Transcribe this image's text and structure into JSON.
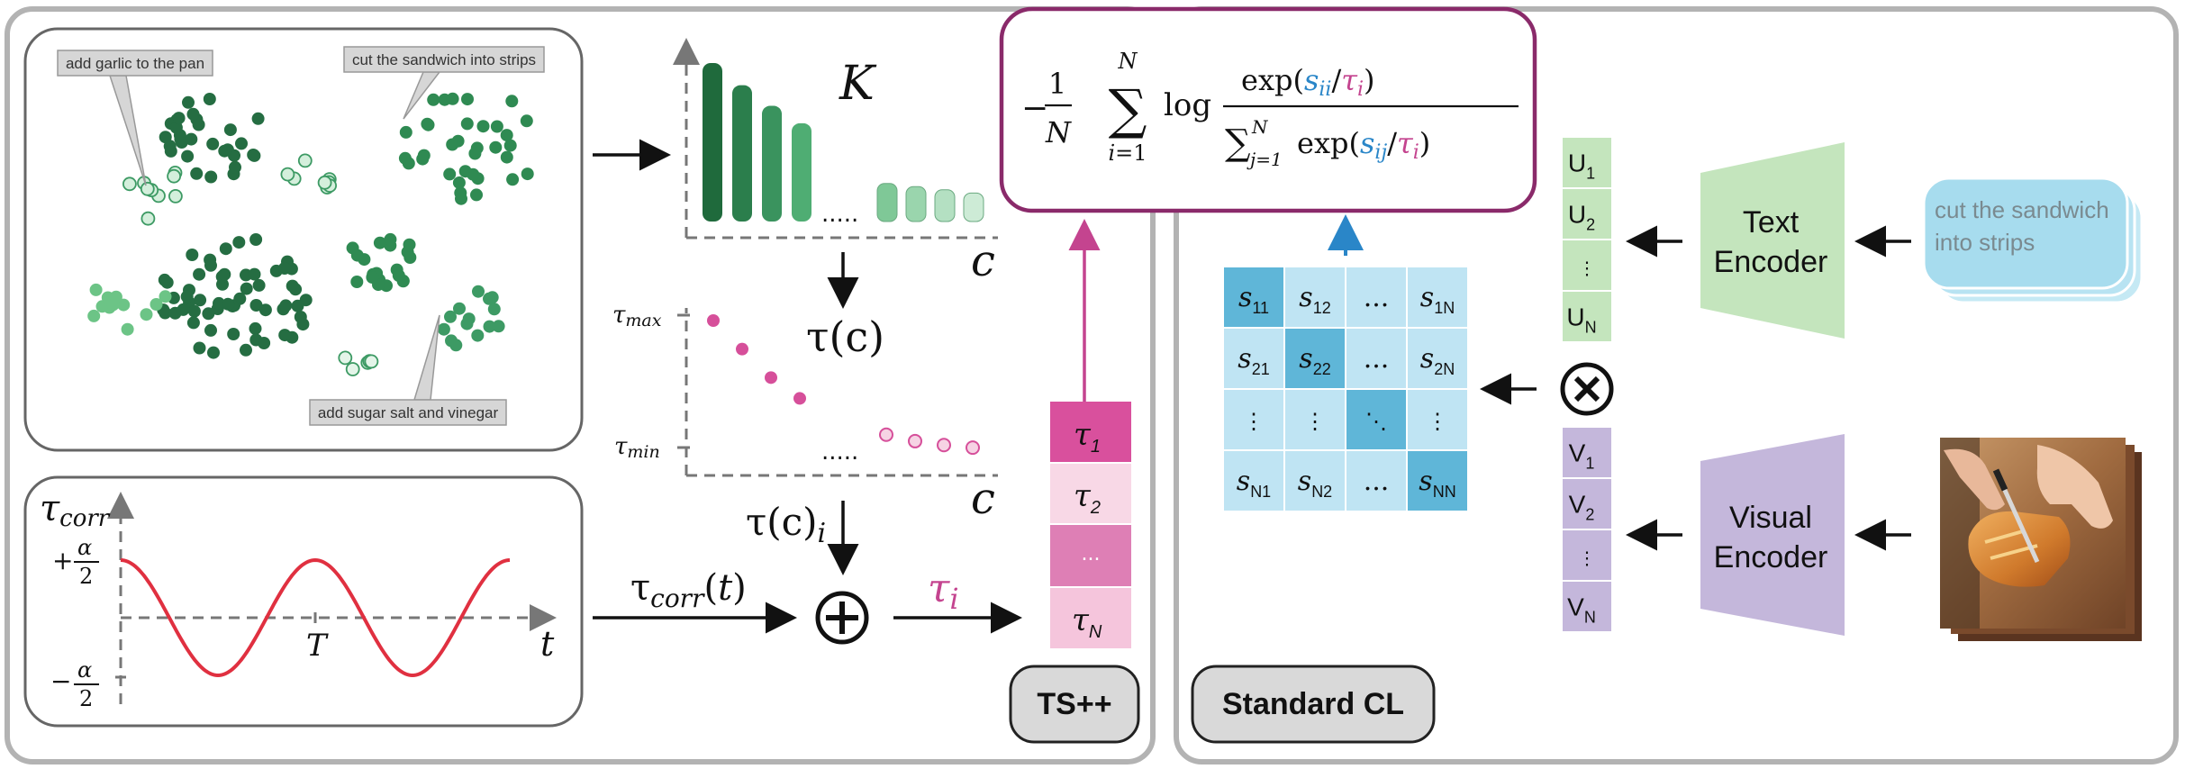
{
  "clusters": {
    "callouts": [
      "add garlic to the pan",
      "cut the sandwich into strips",
      "add sugar salt and vinegar"
    ]
  },
  "histogram": {
    "k_label": "K",
    "ellipsis": ".....",
    "x_axis": "c",
    "dark_bar_values": [
      1.0,
      0.86,
      0.73,
      0.62
    ],
    "light_bar_values": [
      0.24,
      0.22,
      0.2,
      0.18
    ]
  },
  "temperature": {
    "arrow_label": "τ(c)",
    "tau_max": "τmax",
    "tau_min": "τmin",
    "ellipsis": ".....",
    "x_axis": "c",
    "high_points": [
      1.0,
      0.78,
      0.56,
      0.4
    ],
    "low_points": [
      0.12,
      0.07,
      0.04,
      0.02
    ],
    "out_label": "τ(c)i"
  },
  "cosine": {
    "y_axis": "τcorr",
    "plus_tick": "+α/2",
    "minus_tick": "−α/2",
    "period_tick": "T",
    "x_axis": "t",
    "arrow_label": "τcorr(t)"
  },
  "combine": {
    "tau_i_label": "τi",
    "tau_stack": [
      "τ1",
      "τ2",
      "...",
      "τN"
    ]
  },
  "formula": {
    "text": "−(1/N) Σ_{i=1}^{N} log exp(sii/τi) / Σ_{j=1}^{N} exp(sij/τi)",
    "neg_one": "−",
    "one": "1",
    "N": "N",
    "sum_top": "N",
    "sum_bottom": "i=1",
    "log": "log",
    "num_exp": "exp(",
    "num_s": "sii",
    "num_tau": "τi",
    "den_sum_top": "N",
    "den_sum_bottom": "j=1",
    "den_exp": "exp(",
    "den_s": "sij",
    "den_tau": "τi"
  },
  "labels": {
    "ts_plus_plus": "TS++",
    "standard_cl": "Standard CL"
  },
  "similarity_matrix": {
    "rows": [
      [
        "S11",
        "S12",
        "...",
        "S1N"
      ],
      [
        "S21",
        "S22",
        "...",
        "S2N"
      ],
      [
        "⋮",
        "⋮",
        "⋱",
        "⋮"
      ],
      [
        "SN1",
        "SN2",
        "...",
        "SNN"
      ]
    ]
  },
  "text_embeddings": [
    "U1",
    "U2",
    "⋮",
    "UN"
  ],
  "visual_embeddings": [
    "V1",
    "V2",
    "⋮",
    "VN"
  ],
  "encoders": {
    "text": [
      "Text",
      "Encoder"
    ],
    "visual": [
      "Visual",
      "Encoder"
    ]
  },
  "text_input": [
    "cut the sandwich",
    "into strips"
  ],
  "colors": {
    "dark_green": "#256d42",
    "mid_green": "#3d9a64",
    "light_green": "#b4e0c2",
    "magenta": "#c4448f",
    "pink_light": "#f8d8e6",
    "crimson": "#e03040",
    "light_blue": "#bfe4f3",
    "mid_blue": "#5fb6d8",
    "text_green": "#c4e5bd",
    "visual_purple": "#c4b7db",
    "formula_border": "#8a2a6a"
  }
}
